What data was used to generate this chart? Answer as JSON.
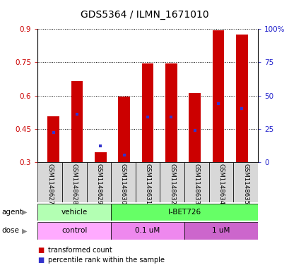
{
  "title": "GDS5364 / ILMN_1671010",
  "samples": [
    "GSM1148627",
    "GSM1148628",
    "GSM1148629",
    "GSM1148630",
    "GSM1148631",
    "GSM1148632",
    "GSM1148633",
    "GSM1148634",
    "GSM1148635"
  ],
  "bar_values": [
    0.505,
    0.665,
    0.345,
    0.595,
    0.745,
    0.745,
    0.61,
    0.895,
    0.875
  ],
  "bar_base": 0.3,
  "percentile_values_pct": [
    22,
    36,
    12,
    5,
    34,
    34,
    24,
    44,
    40
  ],
  "bar_color": "#cc0000",
  "percentile_color": "#3333cc",
  "ylim_left": [
    0.3,
    0.9
  ],
  "ylim_right": [
    0,
    100
  ],
  "yticks_left": [
    0.3,
    0.45,
    0.6,
    0.75,
    0.9
  ],
  "yticks_right": [
    0,
    25,
    50,
    75,
    100
  ],
  "ytick_labels_left": [
    "0.3",
    "0.45",
    "0.6",
    "0.75",
    "0.9"
  ],
  "ytick_labels_right": [
    "0",
    "25",
    "50",
    "75",
    "100%"
  ],
  "agent_groups": [
    {
      "label": "vehicle",
      "start": 0,
      "end": 3,
      "color": "#b3ffb3"
    },
    {
      "label": "I-BET726",
      "start": 3,
      "end": 9,
      "color": "#66ff66"
    }
  ],
  "dose_groups": [
    {
      "label": "control",
      "start": 0,
      "end": 3,
      "color": "#ffaaff"
    },
    {
      "label": "0.1 uM",
      "start": 3,
      "end": 6,
      "color": "#ee88ee"
    },
    {
      "label": "1 uM",
      "start": 6,
      "end": 9,
      "color": "#cc66cc"
    }
  ],
  "legend_items": [
    {
      "label": "transformed count",
      "color": "#cc0000"
    },
    {
      "label": "percentile rank within the sample",
      "color": "#3333cc"
    }
  ],
  "bg_color": "#ffffff",
  "bar_width": 0.5,
  "title_fontsize": 10,
  "tick_fontsize": 7.5,
  "sample_fontsize": 6.2,
  "group_fontsize": 7.5,
  "legend_fontsize": 7.0
}
